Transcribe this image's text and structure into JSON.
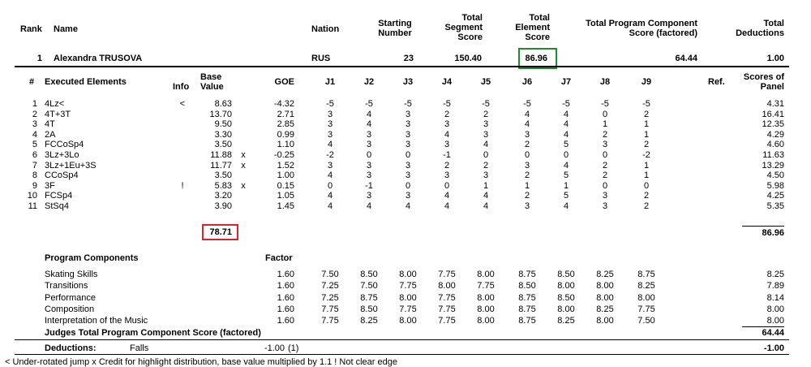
{
  "header": {
    "rank_label": "Rank",
    "name_label": "Name",
    "nation_label": "Nation",
    "starting_number_label": [
      "Starting",
      "Number"
    ],
    "tss_label": [
      "Total",
      "Segment",
      "Score"
    ],
    "tes_label": [
      "Total",
      "Element",
      "Score"
    ],
    "pcs_label": [
      "Total Program Component",
      "Score (factored)"
    ],
    "ded_label": [
      "Total",
      "Deductions"
    ]
  },
  "skater": {
    "rank": "1",
    "name": "Alexandra TRUSOVA",
    "nation": "RUS",
    "starting_number": "23",
    "tss": "150.40",
    "tes": "86.96",
    "pcs": "64.44",
    "deductions": "1.00"
  },
  "elements_header": {
    "num": "#",
    "executed": "Executed Elements",
    "info": "Info",
    "base": [
      "Base",
      "Value"
    ],
    "goe": "GOE",
    "judges": [
      "J1",
      "J2",
      "J3",
      "J4",
      "J5",
      "J6",
      "J7",
      "J8",
      "J9"
    ],
    "ref": "Ref.",
    "scores": [
      "Scores of",
      "Panel"
    ]
  },
  "elements": [
    {
      "n": "1",
      "name": "4Lz<",
      "info": "<",
      "base": "8.63",
      "x": "",
      "goe": "-4.32",
      "j": [
        "-5",
        "-5",
        "-5",
        "-5",
        "-5",
        "-5",
        "-5",
        "-5",
        "-5"
      ],
      "score": "4.31"
    },
    {
      "n": "2",
      "name": "4T+3T",
      "info": "",
      "base": "13.70",
      "x": "",
      "goe": "2.71",
      "j": [
        "3",
        "4",
        "3",
        "2",
        "2",
        "4",
        "4",
        "0",
        "2"
      ],
      "score": "16.41"
    },
    {
      "n": "3",
      "name": "4T",
      "info": "",
      "base": "9.50",
      "x": "",
      "goe": "2.85",
      "j": [
        "3",
        "4",
        "3",
        "3",
        "3",
        "4",
        "4",
        "1",
        "1"
      ],
      "score": "12.35"
    },
    {
      "n": "4",
      "name": "2A",
      "info": "",
      "base": "3.30",
      "x": "",
      "goe": "0.99",
      "j": [
        "3",
        "3",
        "3",
        "4",
        "3",
        "3",
        "4",
        "2",
        "1"
      ],
      "score": "4.29"
    },
    {
      "n": "5",
      "name": "FCCoSp4",
      "info": "",
      "base": "3.50",
      "x": "",
      "goe": "1.10",
      "j": [
        "4",
        "3",
        "3",
        "3",
        "4",
        "2",
        "5",
        "3",
        "2"
      ],
      "score": "4.60"
    },
    {
      "n": "6",
      "name": "3Lz+3Lo",
      "info": "",
      "base": "11.88",
      "x": "x",
      "goe": "-0.25",
      "j": [
        "-2",
        "0",
        "0",
        "-1",
        "0",
        "0",
        "0",
        "0",
        "-2"
      ],
      "score": "11.63"
    },
    {
      "n": "7",
      "name": "3Lz+1Eu+3S",
      "info": "",
      "base": "11.77",
      "x": "x",
      "goe": "1.52",
      "j": [
        "3",
        "3",
        "3",
        "2",
        "2",
        "3",
        "4",
        "2",
        "1"
      ],
      "score": "13.29"
    },
    {
      "n": "8",
      "name": "CCoSp4",
      "info": "",
      "base": "3.50",
      "x": "",
      "goe": "1.00",
      "j": [
        "4",
        "3",
        "3",
        "3",
        "3",
        "2",
        "5",
        "2",
        "1"
      ],
      "score": "4.50"
    },
    {
      "n": "9",
      "name": "3F",
      "info": "!",
      "base": "5.83",
      "x": "x",
      "goe": "0.15",
      "j": [
        "0",
        "-1",
        "0",
        "0",
        "1",
        "1",
        "1",
        "0",
        "0"
      ],
      "score": "5.98"
    },
    {
      "n": "10",
      "name": "FCSp4",
      "info": "",
      "base": "3.20",
      "x": "",
      "goe": "1.05",
      "j": [
        "4",
        "3",
        "3",
        "4",
        "4",
        "2",
        "5",
        "3",
        "2"
      ],
      "score": "4.25"
    },
    {
      "n": "11",
      "name": "StSq4",
      "info": "",
      "base": "3.90",
      "x": "",
      "goe": "1.45",
      "j": [
        "4",
        "4",
        "4",
        "4",
        "4",
        "3",
        "4",
        "3",
        "2"
      ],
      "score": "5.35"
    }
  ],
  "base_total": "78.71",
  "tes_total": "86.96",
  "components_header": {
    "label": "Program Components",
    "factor": "Factor"
  },
  "components": [
    {
      "name": "Skating Skills",
      "factor": "1.60",
      "j": [
        "7.50",
        "8.50",
        "8.00",
        "7.75",
        "8.00",
        "8.75",
        "8.50",
        "8.25",
        "8.75"
      ],
      "score": "8.25"
    },
    {
      "name": "Transitions",
      "factor": "1.60",
      "j": [
        "7.25",
        "7.50",
        "7.75",
        "8.00",
        "7.75",
        "8.50",
        "8.00",
        "8.00",
        "8.25"
      ],
      "score": "7.89"
    },
    {
      "name": "Performance",
      "factor": "1.60",
      "j": [
        "7.25",
        "8.75",
        "8.00",
        "7.75",
        "8.00",
        "8.75",
        "8.50",
        "8.00",
        "8.00"
      ],
      "score": "8.14"
    },
    {
      "name": "Composition",
      "factor": "1.60",
      "j": [
        "7.75",
        "8.50",
        "7.75",
        "7.75",
        "8.00",
        "8.75",
        "8.00",
        "8.25",
        "7.75"
      ],
      "score": "8.00"
    },
    {
      "name": "Interpretation of the Music",
      "factor": "1.60",
      "j": [
        "7.75",
        "8.25",
        "8.00",
        "7.75",
        "8.00",
        "8.75",
        "8.25",
        "8.00",
        "7.50"
      ],
      "score": "8.00"
    }
  ],
  "pcs_line": {
    "label": "Judges Total Program Component Score (factored)",
    "value": "64.44"
  },
  "deductions": {
    "label": "Deductions:",
    "type": "Falls",
    "value": "-1.00",
    "count": "(1)",
    "total": "-1.00"
  },
  "footnote": "< Under-rotated jump   x Credit for highlight distribution, base value multiplied by 1.1   ! Not clear edge",
  "colors": {
    "tes_box": "#1f8a2e",
    "base_box": "#d6262b"
  }
}
